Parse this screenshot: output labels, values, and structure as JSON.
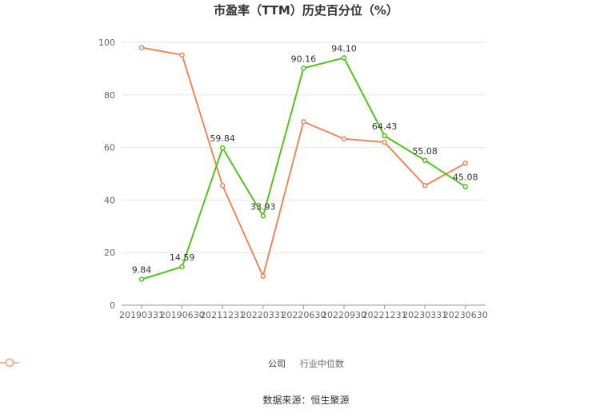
{
  "chart_data": {
    "type": "line",
    "title": "市盈率（TTM）历史百分位（%）",
    "xlabel": "",
    "ylabel": "",
    "categories": [
      "20190331",
      "20190630",
      "20211231",
      "20220331",
      "20220630",
      "20220930",
      "20221231",
      "20230331",
      "20230630"
    ],
    "ylim": [
      0,
      100
    ],
    "yticks": [
      0,
      20,
      40,
      60,
      80,
      100
    ],
    "grid": true,
    "legend_position": "bottom",
    "series": [
      {
        "name": "公司",
        "color": "#52c41a",
        "values": [
          9.84,
          14.59,
          59.84,
          33.93,
          90.16,
          94.1,
          64.43,
          55.08,
          45.08
        ],
        "labels": [
          "9.84",
          "14.59",
          "59.84",
          "33.93",
          "90.16",
          "94.10",
          "64.43",
          "55.08",
          "45.08"
        ]
      },
      {
        "name": "行业中位数",
        "color": "#f0875a",
        "values": [
          98,
          95.2,
          45.5,
          11,
          69.8,
          63.3,
          62,
          45.5,
          54
        ]
      }
    ]
  },
  "source": "数据来源：恒生聚源"
}
